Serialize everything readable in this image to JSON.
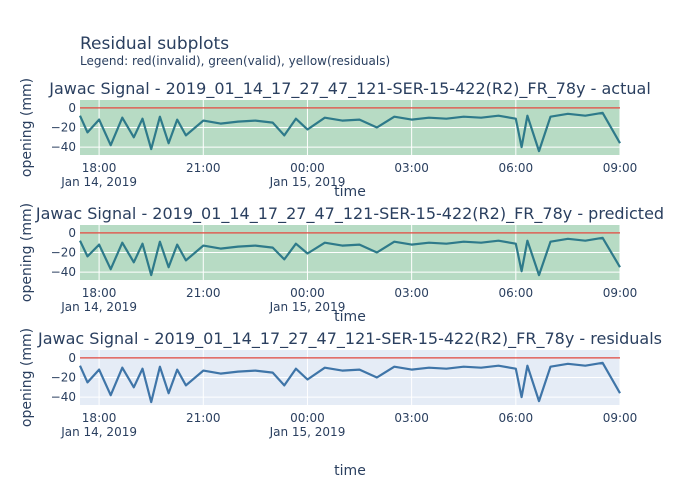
{
  "figure": {
    "title": "Residual subplots",
    "subtitle": "Legend: red(invalid), green(valid), yellow(residuals)",
    "xlabel": "time"
  },
  "colors": {
    "actual_line": "#2e7a8a",
    "predicted_line": "#2e7a8a",
    "residual_line": "#3f75a8",
    "valid_fill": "#b7dbc4",
    "residual_fill": "#e5ecf6",
    "zero_line": "#e0463c",
    "text": "#2a3f5f"
  },
  "chart_data": [
    {
      "type": "line",
      "title": "Jawac Signal - 2019_01_14_17_27_47_121-SER-15-422(R2)_FR_78y - actual",
      "ylabel": "opening (mm)",
      "xlabel": "time",
      "xlim": [
        "2019-01-14 17:27",
        "2019-01-15 09:00"
      ],
      "ylim": [
        -48,
        8
      ],
      "yticks": [
        0,
        -20,
        -40
      ],
      "xticks": [
        {
          "value": "2019-01-14 18:00",
          "label": "18:00",
          "sublabel": "Jan 14, 2019"
        },
        {
          "value": "2019-01-14 21:00",
          "label": "21:00",
          "sublabel": ""
        },
        {
          "value": "2019-01-15 00:00",
          "label": "00:00",
          "sublabel": "Jan 15, 2019"
        },
        {
          "value": "2019-01-15 03:00",
          "label": "03:00",
          "sublabel": ""
        },
        {
          "value": "2019-01-15 06:00",
          "label": "06:00",
          "sublabel": ""
        },
        {
          "value": "2019-01-15 09:00",
          "label": "09:00",
          "sublabel": ""
        }
      ],
      "grid": true,
      "background": "valid_fill",
      "reference_line": 0,
      "series": [
        {
          "values": [
            [
              "2019-01-14 17:27",
              -8
            ],
            [
              "2019-01-14 17:40",
              -25
            ],
            [
              "2019-01-14 18:00",
              -12
            ],
            [
              "2019-01-14 18:20",
              -38
            ],
            [
              "2019-01-14 18:40",
              -10
            ],
            [
              "2019-01-14 19:00",
              -30
            ],
            [
              "2019-01-14 19:15",
              -11
            ],
            [
              "2019-01-14 19:30",
              -42
            ],
            [
              "2019-01-14 19:45",
              -9
            ],
            [
              "2019-01-14 20:00",
              -36
            ],
            [
              "2019-01-14 20:15",
              -12
            ],
            [
              "2019-01-14 20:30",
              -28
            ],
            [
              "2019-01-14 21:00",
              -13
            ],
            [
              "2019-01-14 21:30",
              -16
            ],
            [
              "2019-01-14 22:00",
              -14
            ],
            [
              "2019-01-14 22:30",
              -13
            ],
            [
              "2019-01-14 23:00",
              -15
            ],
            [
              "2019-01-14 23:20",
              -28
            ],
            [
              "2019-01-14 23:40",
              -11
            ],
            [
              "2019-01-15 00:00",
              -22
            ],
            [
              "2019-01-15 00:30",
              -10
            ],
            [
              "2019-01-15 01:00",
              -13
            ],
            [
              "2019-01-15 01:30",
              -12
            ],
            [
              "2019-01-15 02:00",
              -20
            ],
            [
              "2019-01-15 02:30",
              -9
            ],
            [
              "2019-01-15 03:00",
              -12
            ],
            [
              "2019-01-15 03:30",
              -10
            ],
            [
              "2019-01-15 04:00",
              -11
            ],
            [
              "2019-01-15 04:30",
              -9
            ],
            [
              "2019-01-15 05:00",
              -10
            ],
            [
              "2019-01-15 05:30",
              -8
            ],
            [
              "2019-01-15 06:00",
              -11
            ],
            [
              "2019-01-15 06:10",
              -40
            ],
            [
              "2019-01-15 06:20",
              -8
            ],
            [
              "2019-01-15 06:40",
              -44
            ],
            [
              "2019-01-15 07:00",
              -9
            ],
            [
              "2019-01-15 07:30",
              -6
            ],
            [
              "2019-01-15 08:00",
              -8
            ],
            [
              "2019-01-15 08:30",
              -5
            ],
            [
              "2019-01-15 09:00",
              -36
            ]
          ]
        }
      ]
    },
    {
      "type": "line",
      "title": "Jawac Signal - 2019_01_14_17_27_47_121-SER-15-422(R2)_FR_78y - predicted",
      "ylabel": "opening (mm)",
      "xlabel": "time",
      "xlim": [
        "2019-01-14 17:27",
        "2019-01-15 09:00"
      ],
      "ylim": [
        -48,
        8
      ],
      "yticks": [
        0,
        -20,
        -40
      ],
      "xticks": [
        {
          "value": "2019-01-14 18:00",
          "label": "18:00",
          "sublabel": "Jan 14, 2019"
        },
        {
          "value": "2019-01-14 21:00",
          "label": "21:00",
          "sublabel": ""
        },
        {
          "value": "2019-01-15 00:00",
          "label": "00:00",
          "sublabel": "Jan 15, 2019"
        },
        {
          "value": "2019-01-15 03:00",
          "label": "03:00",
          "sublabel": ""
        },
        {
          "value": "2019-01-15 06:00",
          "label": "06:00",
          "sublabel": ""
        },
        {
          "value": "2019-01-15 09:00",
          "label": "09:00",
          "sublabel": ""
        }
      ],
      "grid": true,
      "background": "valid_fill",
      "reference_line": 0,
      "series": [
        {
          "values": [
            [
              "2019-01-14 17:27",
              -8
            ],
            [
              "2019-01-14 17:40",
              -24
            ],
            [
              "2019-01-14 18:00",
              -12
            ],
            [
              "2019-01-14 18:20",
              -37
            ],
            [
              "2019-01-14 18:40",
              -10
            ],
            [
              "2019-01-14 19:00",
              -30
            ],
            [
              "2019-01-14 19:15",
              -11
            ],
            [
              "2019-01-14 19:30",
              -43
            ],
            [
              "2019-01-14 19:45",
              -9
            ],
            [
              "2019-01-14 20:00",
              -35
            ],
            [
              "2019-01-14 20:15",
              -12
            ],
            [
              "2019-01-14 20:30",
              -28
            ],
            [
              "2019-01-14 21:00",
              -13
            ],
            [
              "2019-01-14 21:30",
              -16
            ],
            [
              "2019-01-14 22:00",
              -14
            ],
            [
              "2019-01-14 22:30",
              -13
            ],
            [
              "2019-01-14 23:00",
              -15
            ],
            [
              "2019-01-14 23:20",
              -27
            ],
            [
              "2019-01-14 23:40",
              -11
            ],
            [
              "2019-01-15 00:00",
              -21
            ],
            [
              "2019-01-15 00:30",
              -10
            ],
            [
              "2019-01-15 01:00",
              -13
            ],
            [
              "2019-01-15 01:30",
              -12
            ],
            [
              "2019-01-15 02:00",
              -20
            ],
            [
              "2019-01-15 02:30",
              -9
            ],
            [
              "2019-01-15 03:00",
              -12
            ],
            [
              "2019-01-15 03:30",
              -10
            ],
            [
              "2019-01-15 04:00",
              -11
            ],
            [
              "2019-01-15 04:30",
              -9
            ],
            [
              "2019-01-15 05:00",
              -10
            ],
            [
              "2019-01-15 05:30",
              -8
            ],
            [
              "2019-01-15 06:00",
              -11
            ],
            [
              "2019-01-15 06:10",
              -39
            ],
            [
              "2019-01-15 06:20",
              -8
            ],
            [
              "2019-01-15 06:40",
              -43
            ],
            [
              "2019-01-15 07:00",
              -9
            ],
            [
              "2019-01-15 07:30",
              -6
            ],
            [
              "2019-01-15 08:00",
              -8
            ],
            [
              "2019-01-15 08:30",
              -5
            ],
            [
              "2019-01-15 09:00",
              -35
            ]
          ]
        }
      ]
    },
    {
      "type": "line",
      "title": "Jawac Signal - 2019_01_14_17_27_47_121-SER-15-422(R2)_FR_78y - residuals",
      "ylabel": "opening (mm)",
      "xlabel": "time",
      "xlim": [
        "2019-01-14 17:27",
        "2019-01-15 09:00"
      ],
      "ylim": [
        -48,
        8
      ],
      "yticks": [
        0,
        -20,
        -40
      ],
      "xticks": [
        {
          "value": "2019-01-14 18:00",
          "label": "18:00",
          "sublabel": "Jan 14, 2019"
        },
        {
          "value": "2019-01-14 21:00",
          "label": "21:00",
          "sublabel": ""
        },
        {
          "value": "2019-01-15 00:00",
          "label": "00:00",
          "sublabel": "Jan 15, 2019"
        },
        {
          "value": "2019-01-15 03:00",
          "label": "03:00",
          "sublabel": ""
        },
        {
          "value": "2019-01-15 06:00",
          "label": "06:00",
          "sublabel": ""
        },
        {
          "value": "2019-01-15 09:00",
          "label": "09:00",
          "sublabel": ""
        }
      ],
      "grid": true,
      "background": "residual_fill",
      "reference_line": 0,
      "series": [
        {
          "values": [
            [
              "2019-01-14 17:27",
              -8
            ],
            [
              "2019-01-14 17:40",
              -25
            ],
            [
              "2019-01-14 18:00",
              -12
            ],
            [
              "2019-01-14 18:20",
              -38
            ],
            [
              "2019-01-14 18:40",
              -10
            ],
            [
              "2019-01-14 19:00",
              -30
            ],
            [
              "2019-01-14 19:15",
              -11
            ],
            [
              "2019-01-14 19:30",
              -45
            ],
            [
              "2019-01-14 19:45",
              -9
            ],
            [
              "2019-01-14 20:00",
              -36
            ],
            [
              "2019-01-14 20:15",
              -12
            ],
            [
              "2019-01-14 20:30",
              -28
            ],
            [
              "2019-01-14 21:00",
              -13
            ],
            [
              "2019-01-14 21:30",
              -16
            ],
            [
              "2019-01-14 22:00",
              -14
            ],
            [
              "2019-01-14 22:30",
              -13
            ],
            [
              "2019-01-14 23:00",
              -15
            ],
            [
              "2019-01-14 23:20",
              -28
            ],
            [
              "2019-01-14 23:40",
              -11
            ],
            [
              "2019-01-15 00:00",
              -22
            ],
            [
              "2019-01-15 00:30",
              -10
            ],
            [
              "2019-01-15 01:00",
              -13
            ],
            [
              "2019-01-15 01:30",
              -12
            ],
            [
              "2019-01-15 02:00",
              -20
            ],
            [
              "2019-01-15 02:30",
              -9
            ],
            [
              "2019-01-15 03:00",
              -12
            ],
            [
              "2019-01-15 03:30",
              -10
            ],
            [
              "2019-01-15 04:00",
              -11
            ],
            [
              "2019-01-15 04:30",
              -9
            ],
            [
              "2019-01-15 05:00",
              -10
            ],
            [
              "2019-01-15 05:30",
              -8
            ],
            [
              "2019-01-15 06:00",
              -11
            ],
            [
              "2019-01-15 06:10",
              -40
            ],
            [
              "2019-01-15 06:20",
              -8
            ],
            [
              "2019-01-15 06:40",
              -44
            ],
            [
              "2019-01-15 07:00",
              -9
            ],
            [
              "2019-01-15 07:30",
              -6
            ],
            [
              "2019-01-15 08:00",
              -8
            ],
            [
              "2019-01-15 08:30",
              -5
            ],
            [
              "2019-01-15 09:00",
              -36
            ]
          ]
        }
      ]
    }
  ]
}
